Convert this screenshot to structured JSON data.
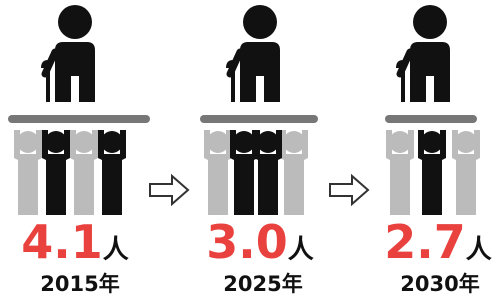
{
  "panels": [
    {
      "value": "4.1",
      "unit": "人",
      "year": "2015年"
    },
    {
      "value": "3.0",
      "unit": "人",
      "year": "2025年"
    },
    {
      "value": "2.7",
      "unit": "人",
      "year": "2030年"
    }
  ]
}
